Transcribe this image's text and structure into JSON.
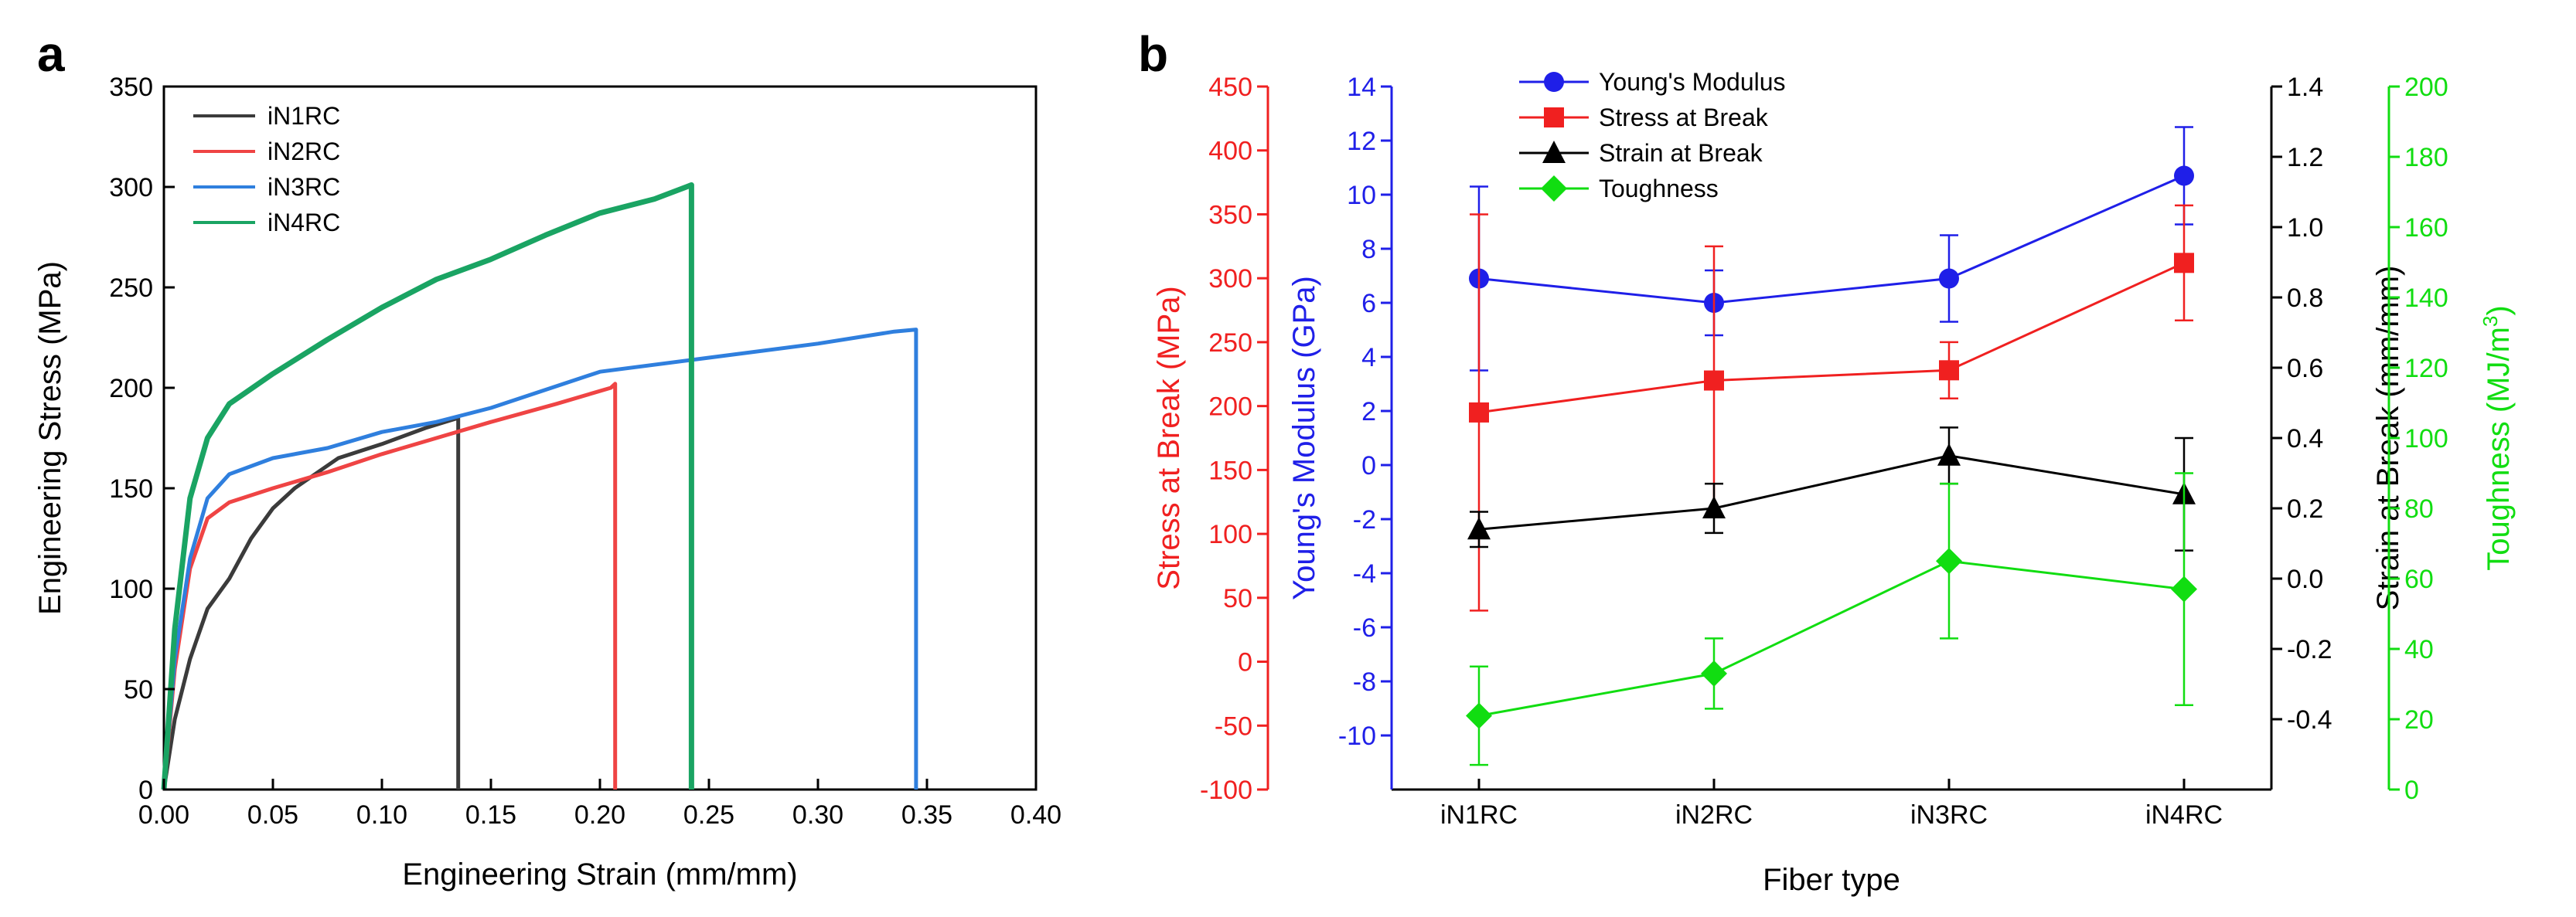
{
  "colors": {
    "iN1RC": "#3b3b3b",
    "iN2RC": "#ef4444",
    "iN3RC": "#2f7fde",
    "iN4RC": "#1aa463",
    "youngs": "#1f1fe8",
    "stress": "#f02020",
    "strain": "#000000",
    "toughness": "#11dd11"
  },
  "chart_data": [
    {
      "panel": "a",
      "type": "line",
      "xlabel": "Engineering Strain (mm/mm)",
      "ylabel": "Engineering Stress (MPa)",
      "xlim": [
        0,
        0.4
      ],
      "ylim": [
        0,
        350
      ],
      "xticks": [
        "0.00",
        "0.05",
        "0.10",
        "0.15",
        "0.20",
        "0.25",
        "0.30",
        "0.35",
        "0.40"
      ],
      "yticks": [
        "0",
        "50",
        "100",
        "150",
        "200",
        "250",
        "300",
        "350"
      ],
      "legend_position": "top-left",
      "series": [
        {
          "name": "iN1RC",
          "color_key": "iN1RC",
          "x": [
            0,
            0.005,
            0.012,
            0.02,
            0.03,
            0.04,
            0.05,
            0.06,
            0.08,
            0.1,
            0.12,
            0.135,
            0.135
          ],
          "y": [
            0,
            35,
            65,
            90,
            105,
            125,
            140,
            150,
            165,
            172,
            180,
            185,
            0
          ]
        },
        {
          "name": "iN2RC",
          "color_key": "iN2RC",
          "x": [
            0,
            0.005,
            0.012,
            0.02,
            0.03,
            0.05,
            0.075,
            0.1,
            0.125,
            0.15,
            0.18,
            0.205,
            0.207,
            0.207
          ],
          "y": [
            0,
            60,
            110,
            135,
            143,
            150,
            158,
            167,
            175,
            183,
            192,
            200,
            202,
            0
          ]
        },
        {
          "name": "iN3RC",
          "color_key": "iN3RC",
          "x": [
            0,
            0.005,
            0.012,
            0.02,
            0.03,
            0.05,
            0.075,
            0.1,
            0.125,
            0.15,
            0.2,
            0.25,
            0.3,
            0.335,
            0.345,
            0.345
          ],
          "y": [
            0,
            65,
            115,
            145,
            157,
            165,
            170,
            178,
            183,
            190,
            208,
            215,
            222,
            228,
            229,
            0
          ]
        },
        {
          "name": "iN4RC",
          "color_key": "iN4RC",
          "x": [
            0,
            0.005,
            0.012,
            0.02,
            0.03,
            0.05,
            0.075,
            0.1,
            0.125,
            0.15,
            0.175,
            0.2,
            0.225,
            0.242,
            0.242
          ],
          "y": [
            0,
            80,
            145,
            175,
            192,
            207,
            224,
            240,
            254,
            264,
            276,
            287,
            294,
            301,
            0
          ]
        }
      ]
    },
    {
      "panel": "b",
      "type": "line",
      "xlabel": "Fiber type",
      "categories": [
        "iN1RC",
        "iN2RC",
        "iN3RC",
        "iN4RC"
      ],
      "legend_position": "top-center",
      "axes": [
        {
          "key": "stress",
          "label": "Stress at Break (MPa)",
          "ylim": [
            -100,
            450
          ],
          "ticks": [
            "-100",
            "-50",
            "0",
            "50",
            "100",
            "150",
            "200",
            "250",
            "300",
            "350",
            "400",
            "450"
          ],
          "side": "left-outer"
        },
        {
          "key": "youngs",
          "label": "Young's Modulus (GPa)",
          "ylim": [
            -12,
            14
          ],
          "ticks": [
            "-10",
            "-8",
            "-6",
            "-4",
            "-2",
            "0",
            "2",
            "4",
            "6",
            "8",
            "10",
            "12",
            "14"
          ],
          "side": "left-inner"
        },
        {
          "key": "strain",
          "label": "Strain at Break (mm/mm)",
          "ylim": [
            -0.6,
            1.4
          ],
          "ticks": [
            "-0.4",
            "-0.2",
            "0.0",
            "0.2",
            "0.4",
            "0.6",
            "0.8",
            "1.0",
            "1.2",
            "1.4"
          ],
          "side": "right-inner"
        },
        {
          "key": "toughness",
          "label": "Toughness (MJ/m",
          "label_sup": "3",
          "label_end": ")",
          "ylim": [
            0,
            200
          ],
          "ticks": [
            "0",
            "20",
            "40",
            "60",
            "80",
            "100",
            "120",
            "140",
            "160",
            "180",
            "200"
          ],
          "side": "right-outer"
        }
      ],
      "series": [
        {
          "name": "Young's Modulus",
          "axis": "youngs",
          "marker": "circle",
          "color_key": "youngs",
          "values": [
            6.9,
            6.0,
            6.9,
            10.7
          ],
          "errors": [
            3.4,
            1.2,
            1.6,
            1.8
          ]
        },
        {
          "name": "Stress at Break",
          "axis": "stress",
          "marker": "square",
          "color_key": "stress",
          "values": [
            195,
            220,
            228,
            312
          ],
          "errors": [
            155,
            105,
            22,
            45
          ]
        },
        {
          "name": "Strain at Break",
          "axis": "strain",
          "marker": "triangle",
          "color_key": "strain",
          "values": [
            0.14,
            0.2,
            0.35,
            0.24
          ],
          "errors": [
            0.05,
            0.07,
            0.08,
            0.16
          ]
        },
        {
          "name": "Toughness",
          "axis": "toughness",
          "marker": "diamond",
          "color_key": "toughness",
          "values": [
            21,
            33,
            65,
            57
          ],
          "errors": [
            14,
            10,
            22,
            33
          ]
        }
      ]
    }
  ]
}
